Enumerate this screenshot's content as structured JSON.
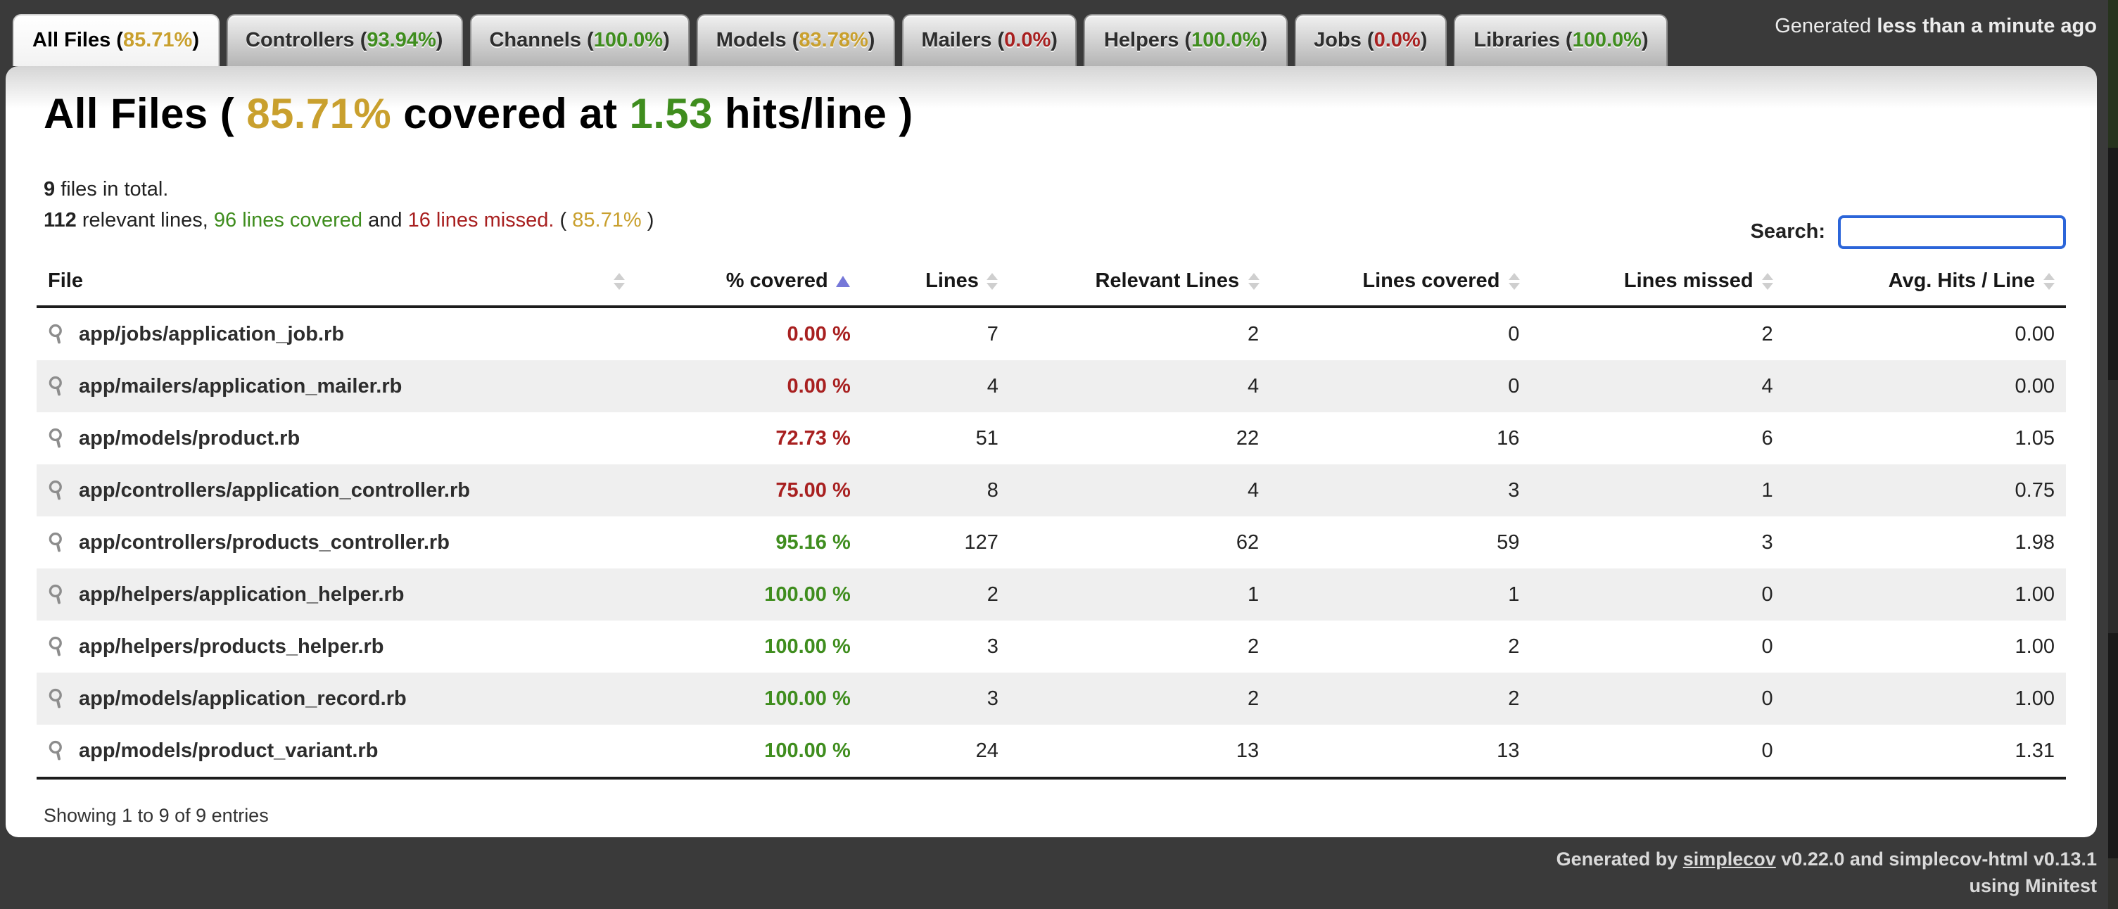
{
  "tabs": [
    {
      "label": "All Files",
      "pct": "85.71%",
      "status": "yellow",
      "active": true
    },
    {
      "label": "Controllers",
      "pct": "93.94%",
      "status": "green",
      "active": false
    },
    {
      "label": "Channels",
      "pct": "100.0%",
      "status": "green",
      "active": false
    },
    {
      "label": "Models",
      "pct": "83.78%",
      "status": "yellow",
      "active": false
    },
    {
      "label": "Mailers",
      "pct": "0.0%",
      "status": "red",
      "active": false
    },
    {
      "label": "Helpers",
      "pct": "100.0%",
      "status": "green",
      "active": false
    },
    {
      "label": "Jobs",
      "pct": "0.0%",
      "status": "red",
      "active": false
    },
    {
      "label": "Libraries",
      "pct": "100.0%",
      "status": "green",
      "active": false
    }
  ],
  "timestamp": {
    "prefix": "Generated ",
    "value": "less than a minute ago"
  },
  "heading": {
    "prefix": "All Files ( ",
    "covered_pct": "85.71%",
    "middle": " covered at ",
    "hits_per_line": "1.53",
    "suffix": " hits/line )"
  },
  "summary": {
    "files_count": "9",
    "files_label": " files in total.",
    "relevant_count": "112",
    "relevant_label": " relevant lines, ",
    "covered_text": "96 lines covered",
    "and_text": " and ",
    "missed_text": "16 lines missed.",
    "open_paren": " ( ",
    "pct": "85.71%",
    "close_paren": " )"
  },
  "search": {
    "label": "Search:",
    "value": ""
  },
  "table": {
    "columns": [
      {
        "label": "File",
        "align": "left",
        "sort": "none"
      },
      {
        "label": "% covered",
        "align": "right",
        "sort": "asc"
      },
      {
        "label": "Lines",
        "align": "right",
        "sort": "none"
      },
      {
        "label": "Relevant Lines",
        "align": "right",
        "sort": "none"
      },
      {
        "label": "Lines covered",
        "align": "right",
        "sort": "none"
      },
      {
        "label": "Lines missed",
        "align": "right",
        "sort": "none"
      },
      {
        "label": "Avg. Hits / Line",
        "align": "right",
        "sort": "none"
      }
    ],
    "rows": [
      {
        "file": "app/jobs/application_job.rb",
        "covered": "0.00 %",
        "covered_status": "red",
        "lines": "7",
        "relevant": "2",
        "lines_covered": "0",
        "lines_missed": "2",
        "avg_hits": "0.00"
      },
      {
        "file": "app/mailers/application_mailer.rb",
        "covered": "0.00 %",
        "covered_status": "red",
        "lines": "4",
        "relevant": "4",
        "lines_covered": "0",
        "lines_missed": "4",
        "avg_hits": "0.00"
      },
      {
        "file": "app/models/product.rb",
        "covered": "72.73 %",
        "covered_status": "red",
        "lines": "51",
        "relevant": "22",
        "lines_covered": "16",
        "lines_missed": "6",
        "avg_hits": "1.05"
      },
      {
        "file": "app/controllers/application_controller.rb",
        "covered": "75.00 %",
        "covered_status": "red",
        "lines": "8",
        "relevant": "4",
        "lines_covered": "3",
        "lines_missed": "1",
        "avg_hits": "0.75"
      },
      {
        "file": "app/controllers/products_controller.rb",
        "covered": "95.16 %",
        "covered_status": "green",
        "lines": "127",
        "relevant": "62",
        "lines_covered": "59",
        "lines_missed": "3",
        "avg_hits": "1.98"
      },
      {
        "file": "app/helpers/application_helper.rb",
        "covered": "100.00 %",
        "covered_status": "green",
        "lines": "2",
        "relevant": "1",
        "lines_covered": "1",
        "lines_missed": "0",
        "avg_hits": "1.00"
      },
      {
        "file": "app/helpers/products_helper.rb",
        "covered": "100.00 %",
        "covered_status": "green",
        "lines": "3",
        "relevant": "2",
        "lines_covered": "2",
        "lines_missed": "0",
        "avg_hits": "1.00"
      },
      {
        "file": "app/models/application_record.rb",
        "covered": "100.00 %",
        "covered_status": "green",
        "lines": "3",
        "relevant": "2",
        "lines_covered": "2",
        "lines_missed": "0",
        "avg_hits": "1.00"
      },
      {
        "file": "app/models/product_variant.rb",
        "covered": "100.00 %",
        "covered_status": "green",
        "lines": "24",
        "relevant": "13",
        "lines_covered": "13",
        "lines_missed": "0",
        "avg_hits": "1.31"
      }
    ],
    "entries_info": "Showing 1 to 9 of 9 entries"
  },
  "page_footer": {
    "prefix": "Generated by ",
    "link": "simplecov",
    "suffix": " v0.22.0 and simplecov-html v0.13.1",
    "line2": "using Minitest"
  },
  "colors": {
    "green": "#3f8d1e",
    "red": "#a82020",
    "yellow": "#c9a02e",
    "search_border_blue": "#2b65d9",
    "sort_active_blue": "#7577d8",
    "dark_background": "#3a3a3a"
  }
}
